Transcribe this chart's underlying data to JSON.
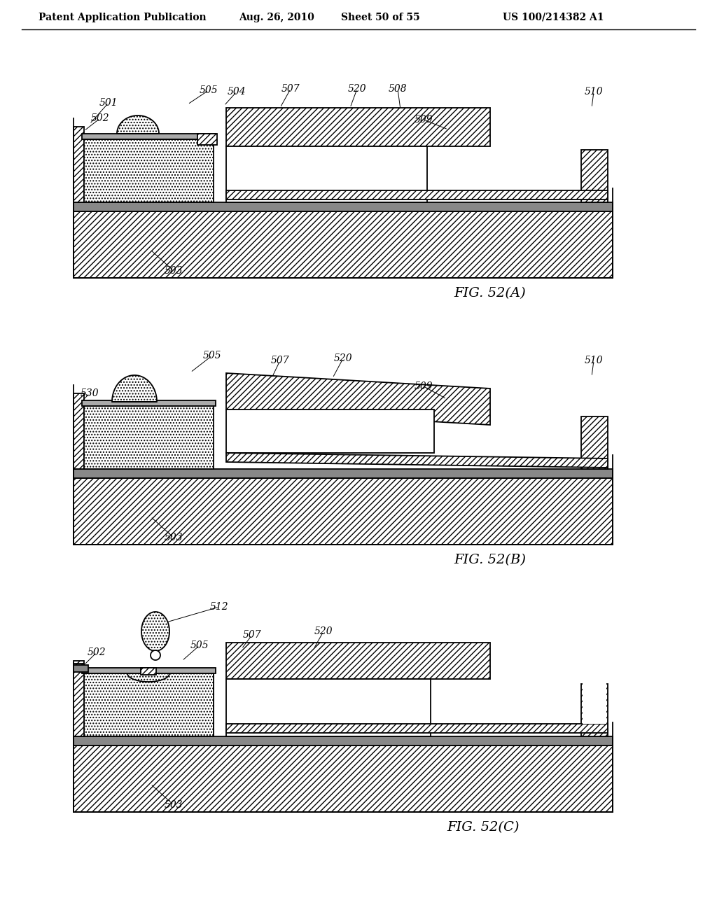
{
  "header_left": "Patent Application Publication",
  "header_mid1": "Aug. 26, 2010",
  "header_mid2": "Sheet 50 of 55",
  "header_right": "US 100/214382 A1",
  "fig_a": "FIG. 52(A)",
  "fig_b": "FIG. 52(B)",
  "fig_c": "FIG. 52(C)",
  "bg": "#ffffff"
}
